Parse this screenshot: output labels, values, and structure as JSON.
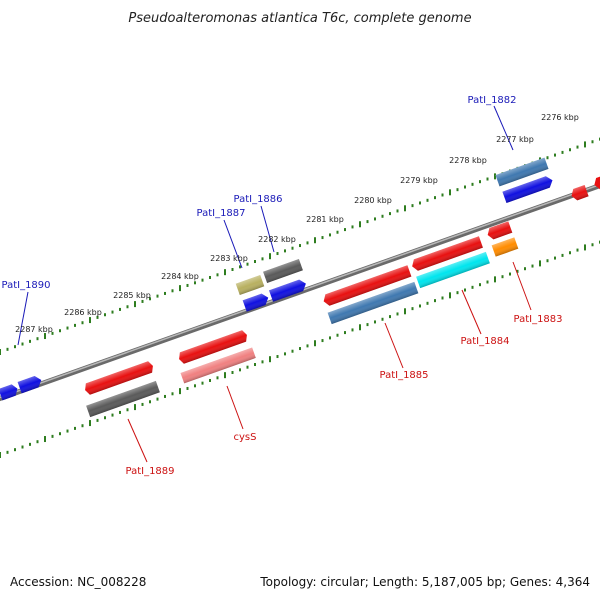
{
  "title": "Pseudoalteromonas atlantica T6c, complete genome",
  "footer": {
    "accession": "Accession: NC_008228",
    "topology": "Topology: circular; Length: 5,187,005 bp; Genes: 4,364"
  },
  "kbp_labels": [
    "2276 kbp",
    "2277 kbp",
    "2278 kbp",
    "2279 kbp",
    "2280 kbp",
    "2281 kbp",
    "2282 kbp",
    "2283 kbp",
    "2284 kbp",
    "2285 kbp",
    "2286 kbp",
    "2287 kbp"
  ],
  "gene_labels": {
    "patl_1882": "PatI_1882",
    "patl_1883": "PatI_1883",
    "patl_1884": "PatI_1884",
    "patl_1885": "PatI_1885",
    "patl_1886": "PatI_1886",
    "patl_1887": "PatI_1887",
    "patl_1889": "PatI_1889",
    "patl_1890": "PatI_1890",
    "cyss": "cysS"
  },
  "colors": {
    "backbone": "#8a8a8a",
    "tick": "#2e7d1f",
    "forward_blue": "#1010e0",
    "steel_blue": "#3f78b0",
    "red": "#e81010",
    "dark_gray": "#5a5a5a",
    "light_red": "#f08080",
    "cyan": "#00e5ee",
    "orange": "#ff8c00",
    "olive": "#b8b060"
  }
}
